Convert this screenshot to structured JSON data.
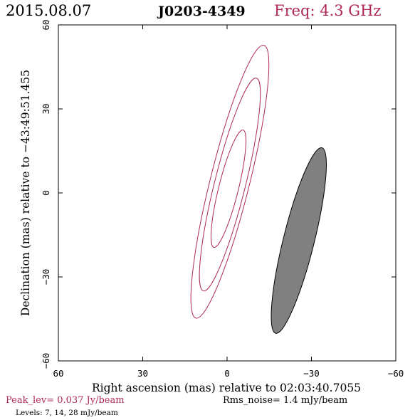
{
  "header": {
    "date": "2015.08.07",
    "source": "J0203-4349",
    "freq": "Freq: 4.3 GHz"
  },
  "footer": {
    "peak": "Peak_lev=  0.037 Jy/beam",
    "rms": "Rms_noise=  1.4 mJy/beam",
    "levels": "Levels:  7,  14,  28 mJy/beam"
  },
  "colors": {
    "contour": "#b0285a",
    "accent_text": "#b0285a",
    "beam_fill": "#808080",
    "axis": "#000000"
  },
  "chart_data": {
    "type": "contour",
    "title": "",
    "xlabel": "Right ascension (mas) relative to 02:03:40.7055",
    "ylabel": "Declination (mas) relative to −43:49:51.455",
    "xlim": [
      60,
      -60
    ],
    "ylim": [
      -60,
      60
    ],
    "xticks": [
      60,
      30,
      0,
      -30,
      -60
    ],
    "xtick_labels": [
      "60",
      "30",
      "0",
      "−30",
      "−60"
    ],
    "yticks": [
      -60,
      -30,
      0,
      30,
      60
    ],
    "ytick_labels": [
      "−60",
      "−30",
      "0",
      "30",
      "60"
    ],
    "contour_levels_mJy": [
      7,
      14,
      28
    ],
    "contours": [
      {
        "level": 28,
        "cx": -0.5,
        "cy": 1.5,
        "semi_major": 21.5,
        "semi_minor": 3.5,
        "pa_deg": 14
      },
      {
        "level": 14,
        "cx": -1.0,
        "cy": 3.0,
        "semi_major": 39.0,
        "semi_minor": 5.5,
        "pa_deg": 14
      },
      {
        "level": 7,
        "cx": -1.0,
        "cy": 4.0,
        "semi_major": 50.0,
        "semi_minor": 7.0,
        "pa_deg": 14
      }
    ],
    "beam": {
      "cx": -25.5,
      "cy": -17.0,
      "semi_major": 34.0,
      "semi_minor": 5.5,
      "pa_deg": 14
    }
  }
}
